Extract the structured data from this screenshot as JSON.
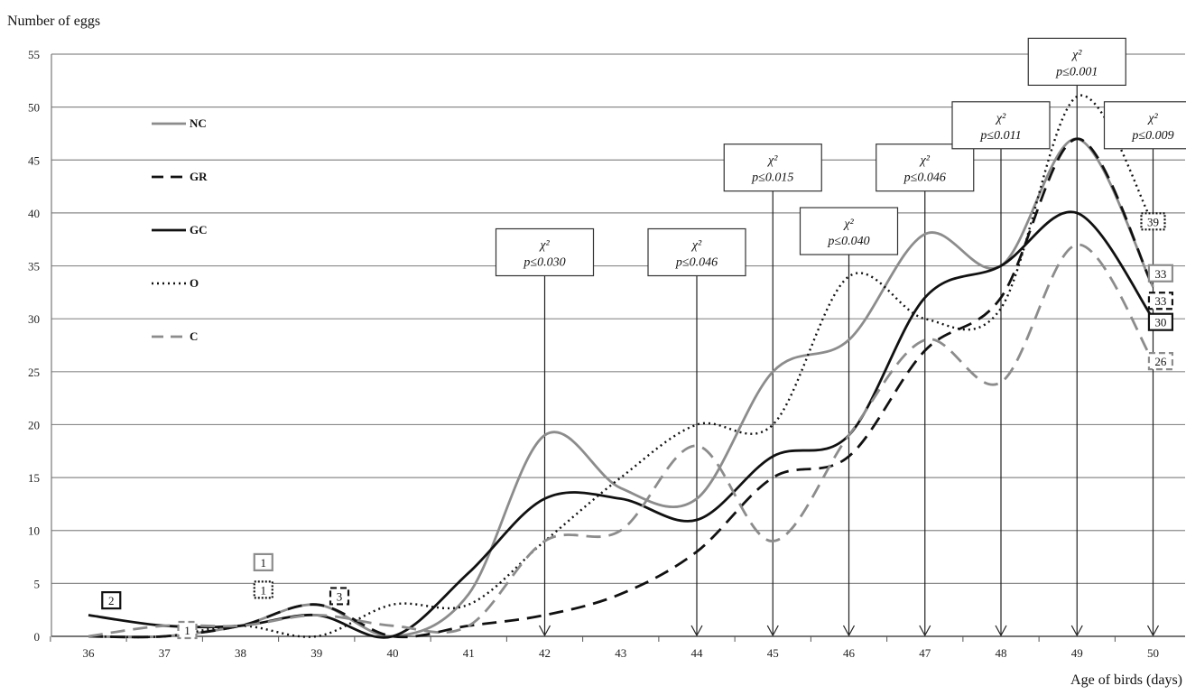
{
  "chart_data": {
    "type": "line",
    "ylabel": "Number of eggs",
    "xlabel": "Age of birds (days)",
    "xlim": [
      36,
      50
    ],
    "ylim": [
      0,
      55
    ],
    "x_ticks": [
      "36",
      "37",
      "38",
      "39",
      "40",
      "41",
      "42",
      "43",
      "44",
      "45",
      "46",
      "47",
      "48",
      "49",
      "50"
    ],
    "y_ticks": [
      "0",
      "5",
      "10",
      "15",
      "20",
      "25",
      "30",
      "35",
      "40",
      "45",
      "50",
      "55"
    ],
    "grid": "horizontal",
    "legend_placement": "top-left",
    "series": [
      {
        "name": "NC",
        "color": "#8c8c8c",
        "dash": "solid",
        "x": [
          36,
          37,
          38,
          39,
          40,
          41,
          42,
          43,
          44,
          45,
          46,
          47,
          48,
          49,
          50
        ],
        "y": [
          0,
          0,
          1,
          3,
          0,
          4,
          19,
          14,
          13,
          25,
          28,
          38,
          35,
          47,
          33
        ]
      },
      {
        "name": "GR",
        "color": "#111111",
        "dash": "dashed",
        "x": [
          36,
          37,
          38,
          39,
          40,
          41,
          42,
          43,
          44,
          45,
          46,
          47,
          48,
          49,
          50
        ],
        "y": [
          0,
          0,
          1,
          3,
          0,
          1,
          2,
          4,
          8,
          15,
          17,
          27,
          32,
          47,
          33
        ]
      },
      {
        "name": "GC",
        "color": "#111111",
        "dash": "solid",
        "x": [
          36,
          37,
          38,
          39,
          40,
          41,
          42,
          43,
          44,
          45,
          46,
          47,
          48,
          49,
          50
        ],
        "y": [
          2,
          1,
          1,
          2,
          0,
          6,
          13,
          13,
          11,
          17,
          19,
          32,
          35,
          40,
          30
        ]
      },
      {
        "name": "O",
        "color": "#111111",
        "dash": "dotted",
        "x": [
          36,
          37,
          38,
          39,
          40,
          41,
          42,
          43,
          44,
          45,
          46,
          47,
          48,
          49,
          50
        ],
        "y": [
          0,
          0,
          1,
          0,
          3,
          3,
          9,
          15,
          20,
          20,
          34,
          30,
          31,
          51,
          39
        ]
      },
      {
        "name": "C",
        "color": "#8c8c8c",
        "dash": "dashed",
        "x": [
          36,
          37,
          38,
          39,
          40,
          41,
          42,
          43,
          44,
          45,
          46,
          47,
          48,
          49,
          50
        ],
        "y": [
          0,
          1,
          1,
          2,
          1,
          1,
          9,
          10,
          18,
          9,
          19,
          28,
          24,
          37,
          26
        ]
      }
    ],
    "annotations": [
      {
        "x": 42,
        "line1": "χ²",
        "line2": "p≤0.030",
        "box_y": 38.5
      },
      {
        "x": 44,
        "line1": "χ²",
        "line2": "p≤0.046",
        "box_y": 38.5
      },
      {
        "x": 45,
        "line1": "χ²",
        "line2": "p≤0.015",
        "box_y": 46.5
      },
      {
        "x": 46,
        "line1": "χ²",
        "line2": "p≤0.040",
        "box_y": 40.5
      },
      {
        "x": 47,
        "line1": "χ²",
        "line2": "p≤0.046",
        "box_y": 46.5
      },
      {
        "x": 48,
        "line1": "χ²",
        "line2": "p≤0.011",
        "box_y": 50.5
      },
      {
        "x": 49,
        "line1": "χ²",
        "line2": "p≤0.001",
        "box_y": 56.5
      },
      {
        "x": 50,
        "line1": "χ²",
        "line2": "p≤0.009",
        "box_y": 50.5
      }
    ],
    "point_labels": [
      {
        "series": "GC",
        "x": 36.3,
        "y": 3.4,
        "text": "2"
      },
      {
        "series": "C",
        "x": 37.3,
        "y": 0.6,
        "text": "1"
      },
      {
        "series": "NC",
        "x": 38.3,
        "y": 7.0,
        "text": "1"
      },
      {
        "series": "O",
        "x": 38.3,
        "y": 4.4,
        "text": "1"
      },
      {
        "series": "GR",
        "x": 39.3,
        "y": 3.8,
        "text": "3"
      },
      {
        "series": "O",
        "x": 50.0,
        "y": 39.2,
        "text": "39"
      },
      {
        "series": "NC",
        "x": 50.1,
        "y": 34.3,
        "text": "33"
      },
      {
        "series": "GR",
        "x": 50.1,
        "y": 31.7,
        "text": "33"
      },
      {
        "series": "GC",
        "x": 50.1,
        "y": 29.7,
        "text": "30"
      },
      {
        "series": "C",
        "x": 50.1,
        "y": 26.0,
        "text": "26"
      }
    ]
  }
}
